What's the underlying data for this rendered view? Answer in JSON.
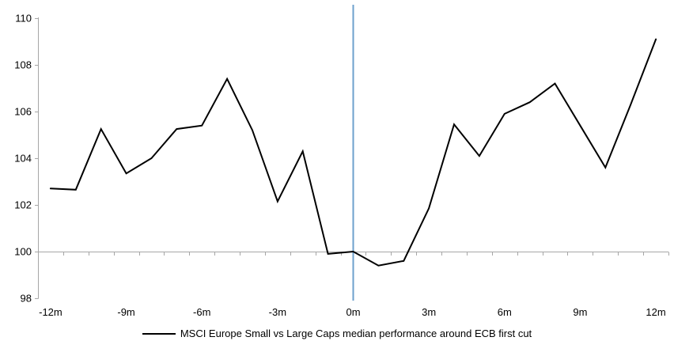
{
  "chart_data": {
    "type": "line",
    "months": [
      -12,
      -11,
      -10,
      -9,
      -8,
      -7,
      -6,
      -5,
      -4,
      -3,
      -2,
      -1,
      0,
      1,
      2,
      3,
      4,
      5,
      6,
      7,
      8,
      9,
      10,
      11,
      12
    ],
    "series": [
      {
        "name": "MSCI Europe Small vs Large Caps median performance around ECB first cut",
        "color": "#000000",
        "values": [
          102.7,
          102.65,
          105.25,
          103.35,
          104.0,
          105.25,
          105.4,
          107.4,
          105.2,
          102.15,
          104.3,
          99.9,
          100.0,
          99.4,
          99.6,
          101.85,
          105.45,
          104.1,
          105.9,
          106.4,
          107.2,
          105.4,
          103.6,
          106.3,
          109.1
        ]
      }
    ],
    "x_tick_labels": [
      "-12m",
      "-9m",
      "-6m",
      "-3m",
      "0m",
      "3m",
      "6m",
      "9m",
      "12m"
    ],
    "x_tick_months": [
      -12,
      -9,
      -6,
      -3,
      0,
      3,
      6,
      9,
      12
    ],
    "y_ticks": [
      110,
      108,
      106,
      104,
      102,
      100,
      98
    ],
    "ylim": [
      98,
      110
    ],
    "xlim_months": [
      -12.5,
      12.5
    ],
    "baseline_value": 100,
    "axis_color": "#A6A6A6",
    "event_line": {
      "month": 0,
      "color": "#6EA0CD"
    },
    "legend_position": "bottom",
    "grid": "off"
  },
  "legend": {
    "label": "MSCI Europe Small vs Large Caps median performance around ECB first cut"
  }
}
